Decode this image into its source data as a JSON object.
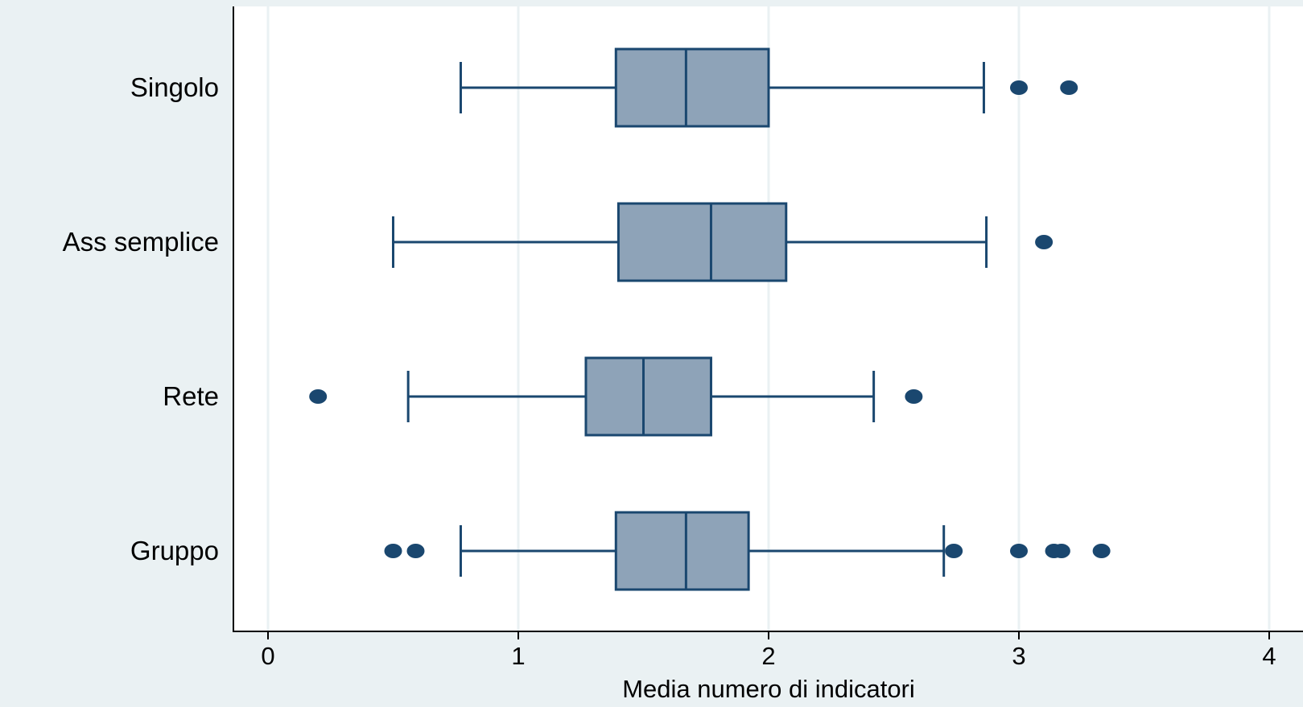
{
  "chart_data": {
    "type": "boxplot",
    "orientation": "horizontal",
    "title": "",
    "xlabel": "Media numero di indicatori",
    "ylabel": "",
    "xlim": [
      0,
      4
    ],
    "x_ticks": [
      "0",
      "1",
      "2",
      "3",
      "4"
    ],
    "grid": true,
    "legend": "none",
    "colors": {
      "background": "#eaf1f3",
      "plot_background": "#ffffff",
      "grid": "#eaf1f3",
      "box_fill": "#8ea3b8",
      "stroke": "#1a476f",
      "outlier": "#1a476f"
    },
    "categories": [
      "Singolo",
      "Ass semplice",
      "Rete",
      "Gruppo"
    ],
    "boxes": [
      {
        "category": "Singolo",
        "whisker_low": 0.77,
        "q1": 1.39,
        "median": 1.67,
        "q3": 2.0,
        "whisker_high": 2.86,
        "outliers": [
          3.0,
          3.2
        ]
      },
      {
        "category": "Ass semplice",
        "whisker_low": 0.5,
        "q1": 1.4,
        "median": 1.77,
        "q3": 2.07,
        "whisker_high": 2.87,
        "outliers": [
          3.1
        ]
      },
      {
        "category": "Rete",
        "whisker_low": 0.56,
        "q1": 1.27,
        "median": 1.5,
        "q3": 1.77,
        "whisker_high": 2.42,
        "outliers": [
          0.2,
          2.58
        ]
      },
      {
        "category": "Gruppo",
        "whisker_low": 0.77,
        "q1": 1.39,
        "median": 1.67,
        "q3": 1.92,
        "whisker_high": 2.7,
        "outliers": [
          0.5,
          0.59,
          2.74,
          3.0,
          3.14,
          3.17,
          3.33
        ]
      }
    ]
  }
}
